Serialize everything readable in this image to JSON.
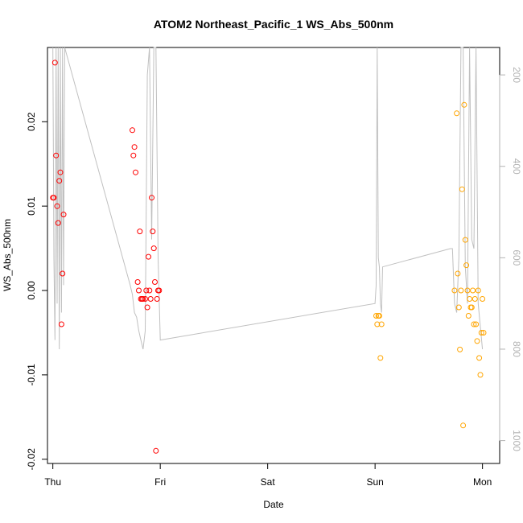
{
  "chart_data": {
    "type": "scatter",
    "title": "ATOM2 Northeast_Pacific_1 WS_Abs_500nm",
    "xlabel": "Date",
    "ylabel": "WS_Abs_500nm",
    "x_ticks": [
      "Thu",
      "Fri",
      "Sat",
      "Sun",
      "Mon"
    ],
    "xlim": [
      -0.05,
      4.16
    ],
    "ylim": [
      -0.0205,
      0.0288
    ],
    "y_ticks": [
      -0.02,
      -0.01,
      0.0,
      0.01,
      0.02
    ],
    "y_tick_labels": [
      "-0.02",
      "-0.01",
      "0.00",
      "0.01",
      "0.02"
    ],
    "right_axis": {
      "color": "#b3b3b3",
      "ticks": [
        200,
        400,
        600,
        800,
        1000
      ],
      "tick_labels": [
        "200",
        "400",
        "600",
        "800",
        "1000"
      ],
      "lim": [
        1050,
        140
      ]
    },
    "colors": {
      "series1": "#ff0000",
      "series2": "#ffa500",
      "depth": "#c0c0c0"
    },
    "grid": false,
    "series": [
      {
        "color": "#ff0000",
        "x": [
          0.0,
          0.01,
          0.02,
          0.03,
          0.04,
          0.05,
          0.06,
          0.07,
          0.08,
          0.09,
          0.1,
          0.74,
          0.75,
          0.76,
          0.77,
          0.79,
          0.8,
          0.81,
          0.82,
          0.83,
          0.84,
          0.86,
          0.87,
          0.88,
          0.89,
          0.9,
          0.91,
          0.92,
          0.93,
          0.94,
          0.95,
          0.96,
          0.97,
          0.98,
          0.99
        ],
        "y": [
          0.011,
          0.011,
          0.027,
          0.016,
          0.01,
          0.008,
          0.013,
          0.014,
          -0.004,
          0.002,
          0.009,
          0.019,
          0.016,
          0.017,
          0.014,
          0.001,
          0.0,
          0.007,
          -0.001,
          -0.001,
          -0.001,
          -0.001,
          0.0,
          -0.002,
          0.004,
          0.0,
          -0.001,
          0.011,
          0.007,
          0.005,
          0.001,
          -0.019,
          -0.001,
          0.0,
          0.0
        ]
      },
      {
        "color": "#ffa500",
        "x": [
          3.01,
          3.02,
          3.03,
          3.04,
          3.05,
          3.06,
          3.74,
          3.76,
          3.77,
          3.78,
          3.79,
          3.8,
          3.81,
          3.82,
          3.83,
          3.84,
          3.85,
          3.86,
          3.87,
          3.88,
          3.89,
          3.9,
          3.91,
          3.92,
          3.93,
          3.94,
          3.95,
          3.96,
          3.97,
          3.98,
          3.99,
          4.0,
          4.01
        ],
        "y": [
          -0.003,
          -0.004,
          -0.003,
          -0.003,
          -0.008,
          -0.004,
          0.0,
          0.021,
          0.002,
          -0.002,
          -0.007,
          0.0,
          0.012,
          -0.016,
          0.022,
          0.006,
          0.003,
          0.0,
          -0.003,
          -0.001,
          -0.002,
          -0.002,
          0.0,
          -0.004,
          -0.001,
          -0.004,
          -0.006,
          0.0,
          -0.008,
          -0.01,
          -0.005,
          -0.001,
          -0.005
        ]
      }
    ],
    "depth_profile": {
      "color": "#c0c0c0",
      "x": [
        0.0,
        0.01,
        0.02,
        0.03,
        0.04,
        0.05,
        0.06,
        0.07,
        0.08,
        0.09,
        0.1,
        0.11,
        0.72,
        0.74,
        0.76,
        0.78,
        0.8,
        0.82,
        0.84,
        0.86,
        0.88,
        0.9,
        0.92,
        0.94,
        0.96,
        0.98,
        1.0,
        3.0,
        3.01,
        3.02,
        3.03,
        3.04,
        3.05,
        3.06,
        3.07,
        3.7,
        3.72,
        3.74,
        3.76,
        3.78,
        3.8,
        3.82,
        3.84,
        3.86,
        3.88,
        3.9,
        3.92,
        3.94,
        3.96,
        4.0
      ],
      "y": [
        140,
        600,
        780,
        140,
        700,
        140,
        800,
        140,
        720,
        140,
        660,
        140,
        660,
        680,
        720,
        730,
        760,
        780,
        800,
        760,
        200,
        140,
        560,
        140,
        140,
        600,
        780,
        700,
        660,
        140,
        600,
        620,
        700,
        720,
        620,
        580,
        580,
        700,
        720,
        600,
        140,
        140,
        620,
        700,
        140,
        560,
        580,
        140,
        700,
        800
      ]
    }
  }
}
